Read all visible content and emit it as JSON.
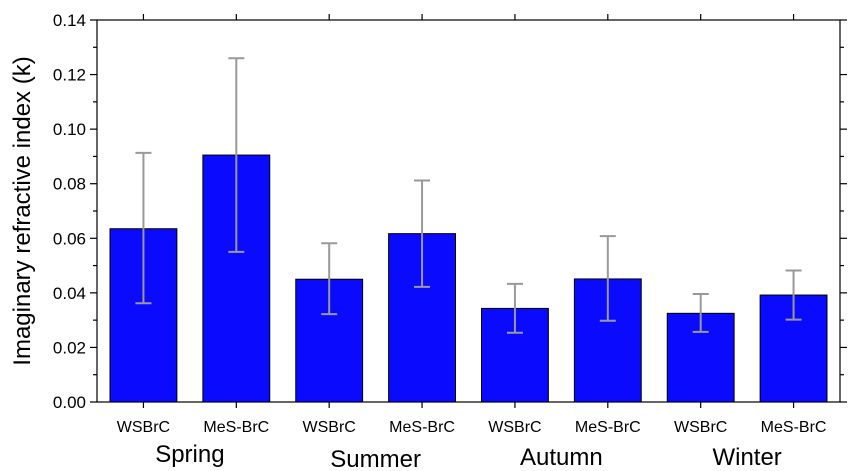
{
  "chart_data": {
    "type": "bar",
    "title": "",
    "xlabel": "",
    "ylabel": "Imaginary refractive index (k)",
    "ylim": [
      0,
      0.14
    ],
    "yticks": [
      "0.00",
      "0.02",
      "0.04",
      "0.06",
      "0.08",
      "0.10",
      "0.12",
      "0.14"
    ],
    "categories": [
      "WSBrC",
      "MeS-BrC",
      "WSBrC",
      "MeS-BrC",
      "WSBrC",
      "MeS-BrC",
      "WSBrC",
      "MeS-BrC"
    ],
    "groups": [
      "Spring",
      "Summer",
      "Autumn",
      "Winter"
    ],
    "values": [
      0.0635,
      0.0905,
      0.045,
      0.0617,
      0.0343,
      0.0451,
      0.0325,
      0.0392
    ],
    "error_low": [
      0.0362,
      0.055,
      0.0322,
      0.0422,
      0.0254,
      0.0298,
      0.0257,
      0.0302
    ],
    "error_high": [
      0.0913,
      0.126,
      0.0582,
      0.0812,
      0.0433,
      0.0608,
      0.0396,
      0.0482
    ],
    "bar_color": "#0a0aff",
    "error_bar_color": "#999999",
    "grid": false
  }
}
